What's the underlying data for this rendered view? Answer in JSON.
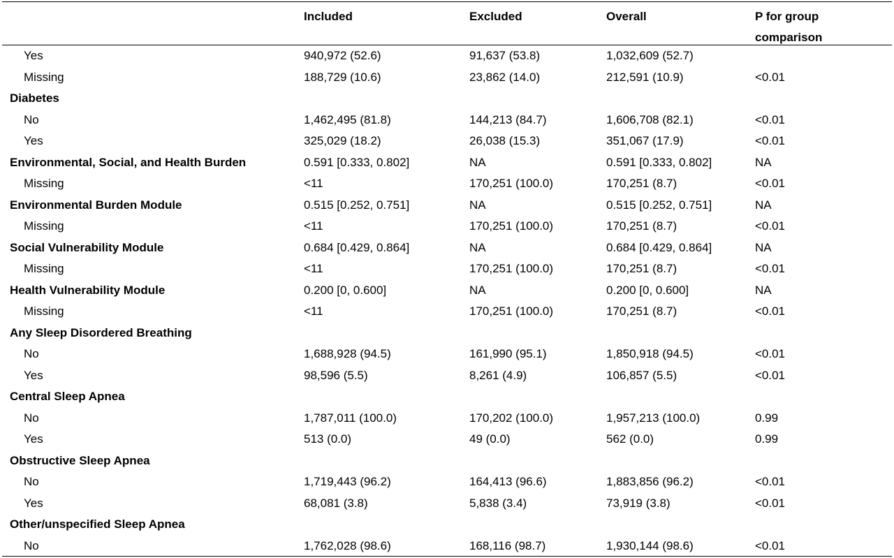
{
  "header": {
    "col_label": "",
    "included": "Included",
    "excluded": "Excluded",
    "overall": "Overall",
    "p_line1": "P for group",
    "p_line2": "comparison"
  },
  "rows": [
    {
      "label": "Yes",
      "level": "sub",
      "included": "940,972 (52.6)",
      "excluded": "91,637 (53.8)",
      "overall": "1,032,609 (52.7)",
      "p": ""
    },
    {
      "label": "Missing",
      "level": "sub",
      "included": "188,729 (10.6)",
      "excluded": "23,862 (14.0)",
      "overall": "212,591 (10.9)",
      "p": "<0.01"
    },
    {
      "label": "Diabetes",
      "level": "group",
      "included": "",
      "excluded": "",
      "overall": "",
      "p": ""
    },
    {
      "label": "No",
      "level": "sub",
      "included": "1,462,495 (81.8)",
      "excluded": "144,213 (84.7)",
      "overall": "1,606,708 (82.1)",
      "p": "<0.01"
    },
    {
      "label": "Yes",
      "level": "sub",
      "included": "325,029 (18.2)",
      "excluded": "26,038 (15.3)",
      "overall": "351,067 (17.9)",
      "p": "<0.01"
    },
    {
      "label": "Environmental, Social, and Health Burden",
      "level": "group",
      "included": "0.591 [0.333, 0.802]",
      "excluded": "NA",
      "overall": "0.591 [0.333, 0.802]",
      "p": "NA"
    },
    {
      "label": "Missing",
      "level": "sub",
      "included": "<11",
      "excluded": "170,251 (100.0)",
      "overall": "170,251 (8.7)",
      "p": "<0.01"
    },
    {
      "label": "Environmental Burden Module",
      "level": "group",
      "included": "0.515 [0.252, 0.751]",
      "excluded": "NA",
      "overall": "0.515 [0.252, 0.751]",
      "p": "NA"
    },
    {
      "label": "Missing",
      "level": "sub",
      "included": "<11",
      "excluded": "170,251 (100.0)",
      "overall": "170,251 (8.7)",
      "p": "<0.01"
    },
    {
      "label": "Social Vulnerability Module",
      "level": "group",
      "included": "0.684 [0.429, 0.864]",
      "excluded": "NA",
      "overall": "0.684 [0.429, 0.864]",
      "p": "NA"
    },
    {
      "label": "Missing",
      "level": "sub",
      "included": "<11",
      "excluded": "170,251 (100.0)",
      "overall": "170,251 (8.7)",
      "p": "<0.01"
    },
    {
      "label": "Health Vulnerability Module",
      "level": "group",
      "included": "0.200 [0, 0.600]",
      "excluded": "NA",
      "overall": "0.200 [0, 0.600]",
      "p": "NA"
    },
    {
      "label": "Missing",
      "level": "sub",
      "included": "<11",
      "excluded": "170,251 (100.0)",
      "overall": "170,251 (8.7)",
      "p": "<0.01"
    },
    {
      "label": "Any Sleep Disordered Breathing",
      "level": "group",
      "included": "",
      "excluded": "",
      "overall": "",
      "p": ""
    },
    {
      "label": "No",
      "level": "sub",
      "included": "1,688,928 (94.5)",
      "excluded": "161,990 (95.1)",
      "overall": "1,850,918 (94.5)",
      "p": "<0.01"
    },
    {
      "label": "Yes",
      "level": "sub",
      "included": "98,596 (5.5)",
      "excluded": "8,261 (4.9)",
      "overall": "106,857 (5.5)",
      "p": "<0.01"
    },
    {
      "label": "Central Sleep Apnea",
      "level": "group",
      "included": "",
      "excluded": "",
      "overall": "",
      "p": ""
    },
    {
      "label": "No",
      "level": "sub",
      "included": "1,787,011 (100.0)",
      "excluded": "170,202 (100.0)",
      "overall": "1,957,213 (100.0)",
      "p": "0.99"
    },
    {
      "label": "Yes",
      "level": "sub",
      "included": "513 (0.0)",
      "excluded": "49 (0.0)",
      "overall": "562 (0.0)",
      "p": "0.99"
    },
    {
      "label": "Obstructive Sleep Apnea",
      "level": "group",
      "included": "",
      "excluded": "",
      "overall": "",
      "p": ""
    },
    {
      "label": "No",
      "level": "sub",
      "included": "1,719,443 (96.2)",
      "excluded": "164,413 (96.6)",
      "overall": "1,883,856 (96.2)",
      "p": "<0.01"
    },
    {
      "label": "Yes",
      "level": "sub",
      "included": "68,081 (3.8)",
      "excluded": "5,838 (3.4)",
      "overall": "73,919 (3.8)",
      "p": "<0.01"
    },
    {
      "label": "Other/unspecified Sleep Apnea",
      "level": "group",
      "included": "",
      "excluded": "",
      "overall": "",
      "p": ""
    },
    {
      "label": "No",
      "level": "sub",
      "included": "1,762,028 (98.6)",
      "excluded": "168,116 (98.7)",
      "overall": "1,930,144 (98.6)",
      "p": "<0.01"
    }
  ]
}
